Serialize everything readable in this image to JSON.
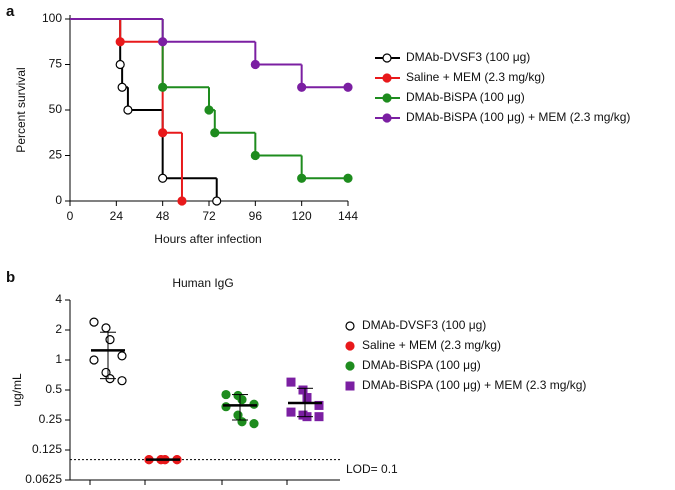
{
  "chart_data": [
    {
      "type": "step",
      "panel_label": "a",
      "ylabel": "Percent survival",
      "xlabel": "Hours after infection",
      "xlim": [
        0,
        144
      ],
      "xticks": [
        0,
        24,
        48,
        72,
        96,
        120,
        144
      ],
      "ylim": [
        0,
        100
      ],
      "yticks": [
        0,
        25,
        50,
        75,
        100
      ],
      "series": [
        {
          "name": "DMAb-DVSF3 (100 μg)",
          "color": "#000000",
          "marker": "open",
          "x": [
            0,
            26,
            27,
            30,
            48,
            76
          ],
          "values": [
            100,
            75,
            62.5,
            50,
            12.5,
            0
          ]
        },
        {
          "name": "Saline + MEM (2.3 mg/kg)",
          "color": "#e8191b",
          "marker": "filled",
          "x": [
            0,
            26,
            48,
            58
          ],
          "values": [
            100,
            87.5,
            37.5,
            0
          ]
        },
        {
          "name": "DMAb-BiSPA (100 μg)",
          "color": "#1e8c1e",
          "marker": "filled",
          "x": [
            0,
            48,
            72,
            75,
            96,
            120,
            144
          ],
          "values": [
            100,
            62.5,
            50,
            37.5,
            25,
            12.5,
            12.5
          ]
        },
        {
          "name": "DMAb-BiSPA (100 μg) + MEM (2.3 mg/kg)",
          "color": "#7b1fa2",
          "marker": "filled",
          "x": [
            0,
            48,
            96,
            120,
            144
          ],
          "values": [
            100,
            87.5,
            75,
            62.5,
            62.5
          ]
        }
      ]
    },
    {
      "type": "dot",
      "panel_label": "b",
      "title": "Human IgG",
      "ylabel": "ug/mL",
      "log_base": 2,
      "ylim": [
        0.0625,
        4
      ],
      "yticks": [
        0.0625,
        0.125,
        0.25,
        0.5,
        1,
        2,
        4
      ],
      "lod": 0.1,
      "lod_label": "LOD= 0.1",
      "series": [
        {
          "name": "DMAb-DVSF3 (100 μg)",
          "color": "#000000",
          "marker": "open",
          "values": [
            2.4,
            2.1,
            1.6,
            1.1,
            1.0,
            0.75,
            0.65,
            0.62
          ],
          "mean": 1.25,
          "sd_range": [
            0.65,
            1.9
          ]
        },
        {
          "name": "Saline + MEM (2.3 mg/kg)",
          "color": "#e8191b",
          "marker": "filled",
          "values": [
            0.1,
            0.1,
            0.1,
            0.1,
            0.1,
            0.1,
            0.1,
            0.1
          ],
          "mean": 0.1,
          "sd_range": [
            0.1,
            0.1
          ]
        },
        {
          "name": "DMAb-BiSPA (100 μg)",
          "color": "#1e8c1e",
          "marker": "filled",
          "values": [
            0.45,
            0.44,
            0.4,
            0.36,
            0.34,
            0.28,
            0.24,
            0.23
          ],
          "mean": 0.35,
          "sd_range": [
            0.25,
            0.45
          ]
        },
        {
          "name": "DMAb-BiSPA (100 μg) + MEM (2.3 mg/kg)",
          "color": "#7b1fa2",
          "marker": "square",
          "values": [
            0.6,
            0.5,
            0.42,
            0.35,
            0.3,
            0.28,
            0.27,
            0.27
          ],
          "mean": 0.37,
          "sd_range": [
            0.27,
            0.52
          ]
        }
      ]
    }
  ]
}
